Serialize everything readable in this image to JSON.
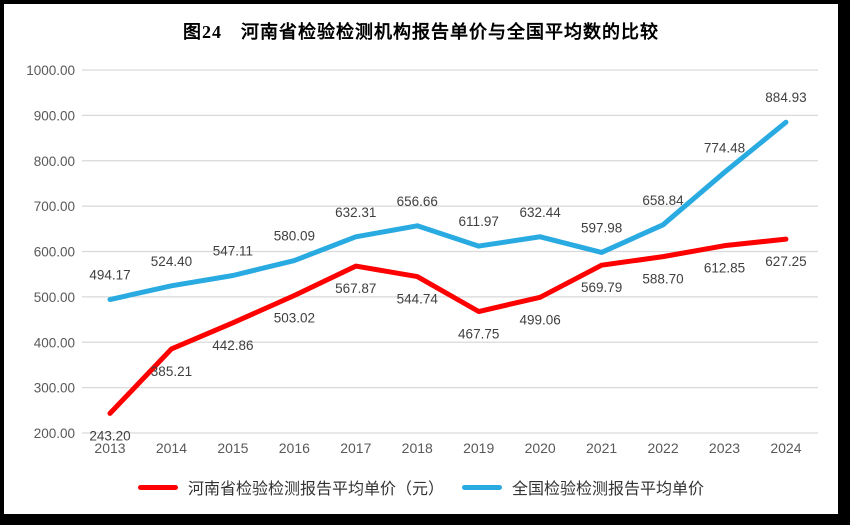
{
  "chart_data": {
    "type": "line",
    "title": "图24　河南省检验检测机构报告单价与全国平均数的比较",
    "categories": [
      "2013",
      "2014",
      "2015",
      "2016",
      "2017",
      "2018",
      "2019",
      "2020",
      "2021",
      "2022",
      "2023",
      "2024"
    ],
    "series": [
      {
        "name": "河南省检验检测报告平均单价（元）",
        "color": "#FE0000",
        "label_position": "below",
        "values": [
          243.2,
          385.21,
          442.86,
          503.02,
          567.87,
          544.74,
          467.75,
          499.06,
          569.79,
          588.7,
          612.85,
          627.25
        ]
      },
      {
        "name": "全国检验检测报告平均单价",
        "color": "#29ABE2",
        "label_position": "above",
        "values": [
          494.17,
          524.4,
          547.11,
          580.09,
          632.31,
          656.66,
          611.97,
          632.44,
          597.98,
          658.84,
          774.48,
          884.93
        ]
      }
    ],
    "y_axis": {
      "min": 200,
      "max": 1000,
      "step": 100,
      "tick_labels": [
        "200.00",
        "300.00",
        "400.00",
        "500.00",
        "600.00",
        "700.00",
        "800.00",
        "900.00",
        "1000.00"
      ]
    },
    "grid": true,
    "legend_position": "bottom",
    "colors": {
      "gridline": "#D9D9D9",
      "axis_label": "#595959",
      "data_label": "#404040",
      "frame_border": "#000000",
      "background": "#FFFFFF"
    }
  }
}
